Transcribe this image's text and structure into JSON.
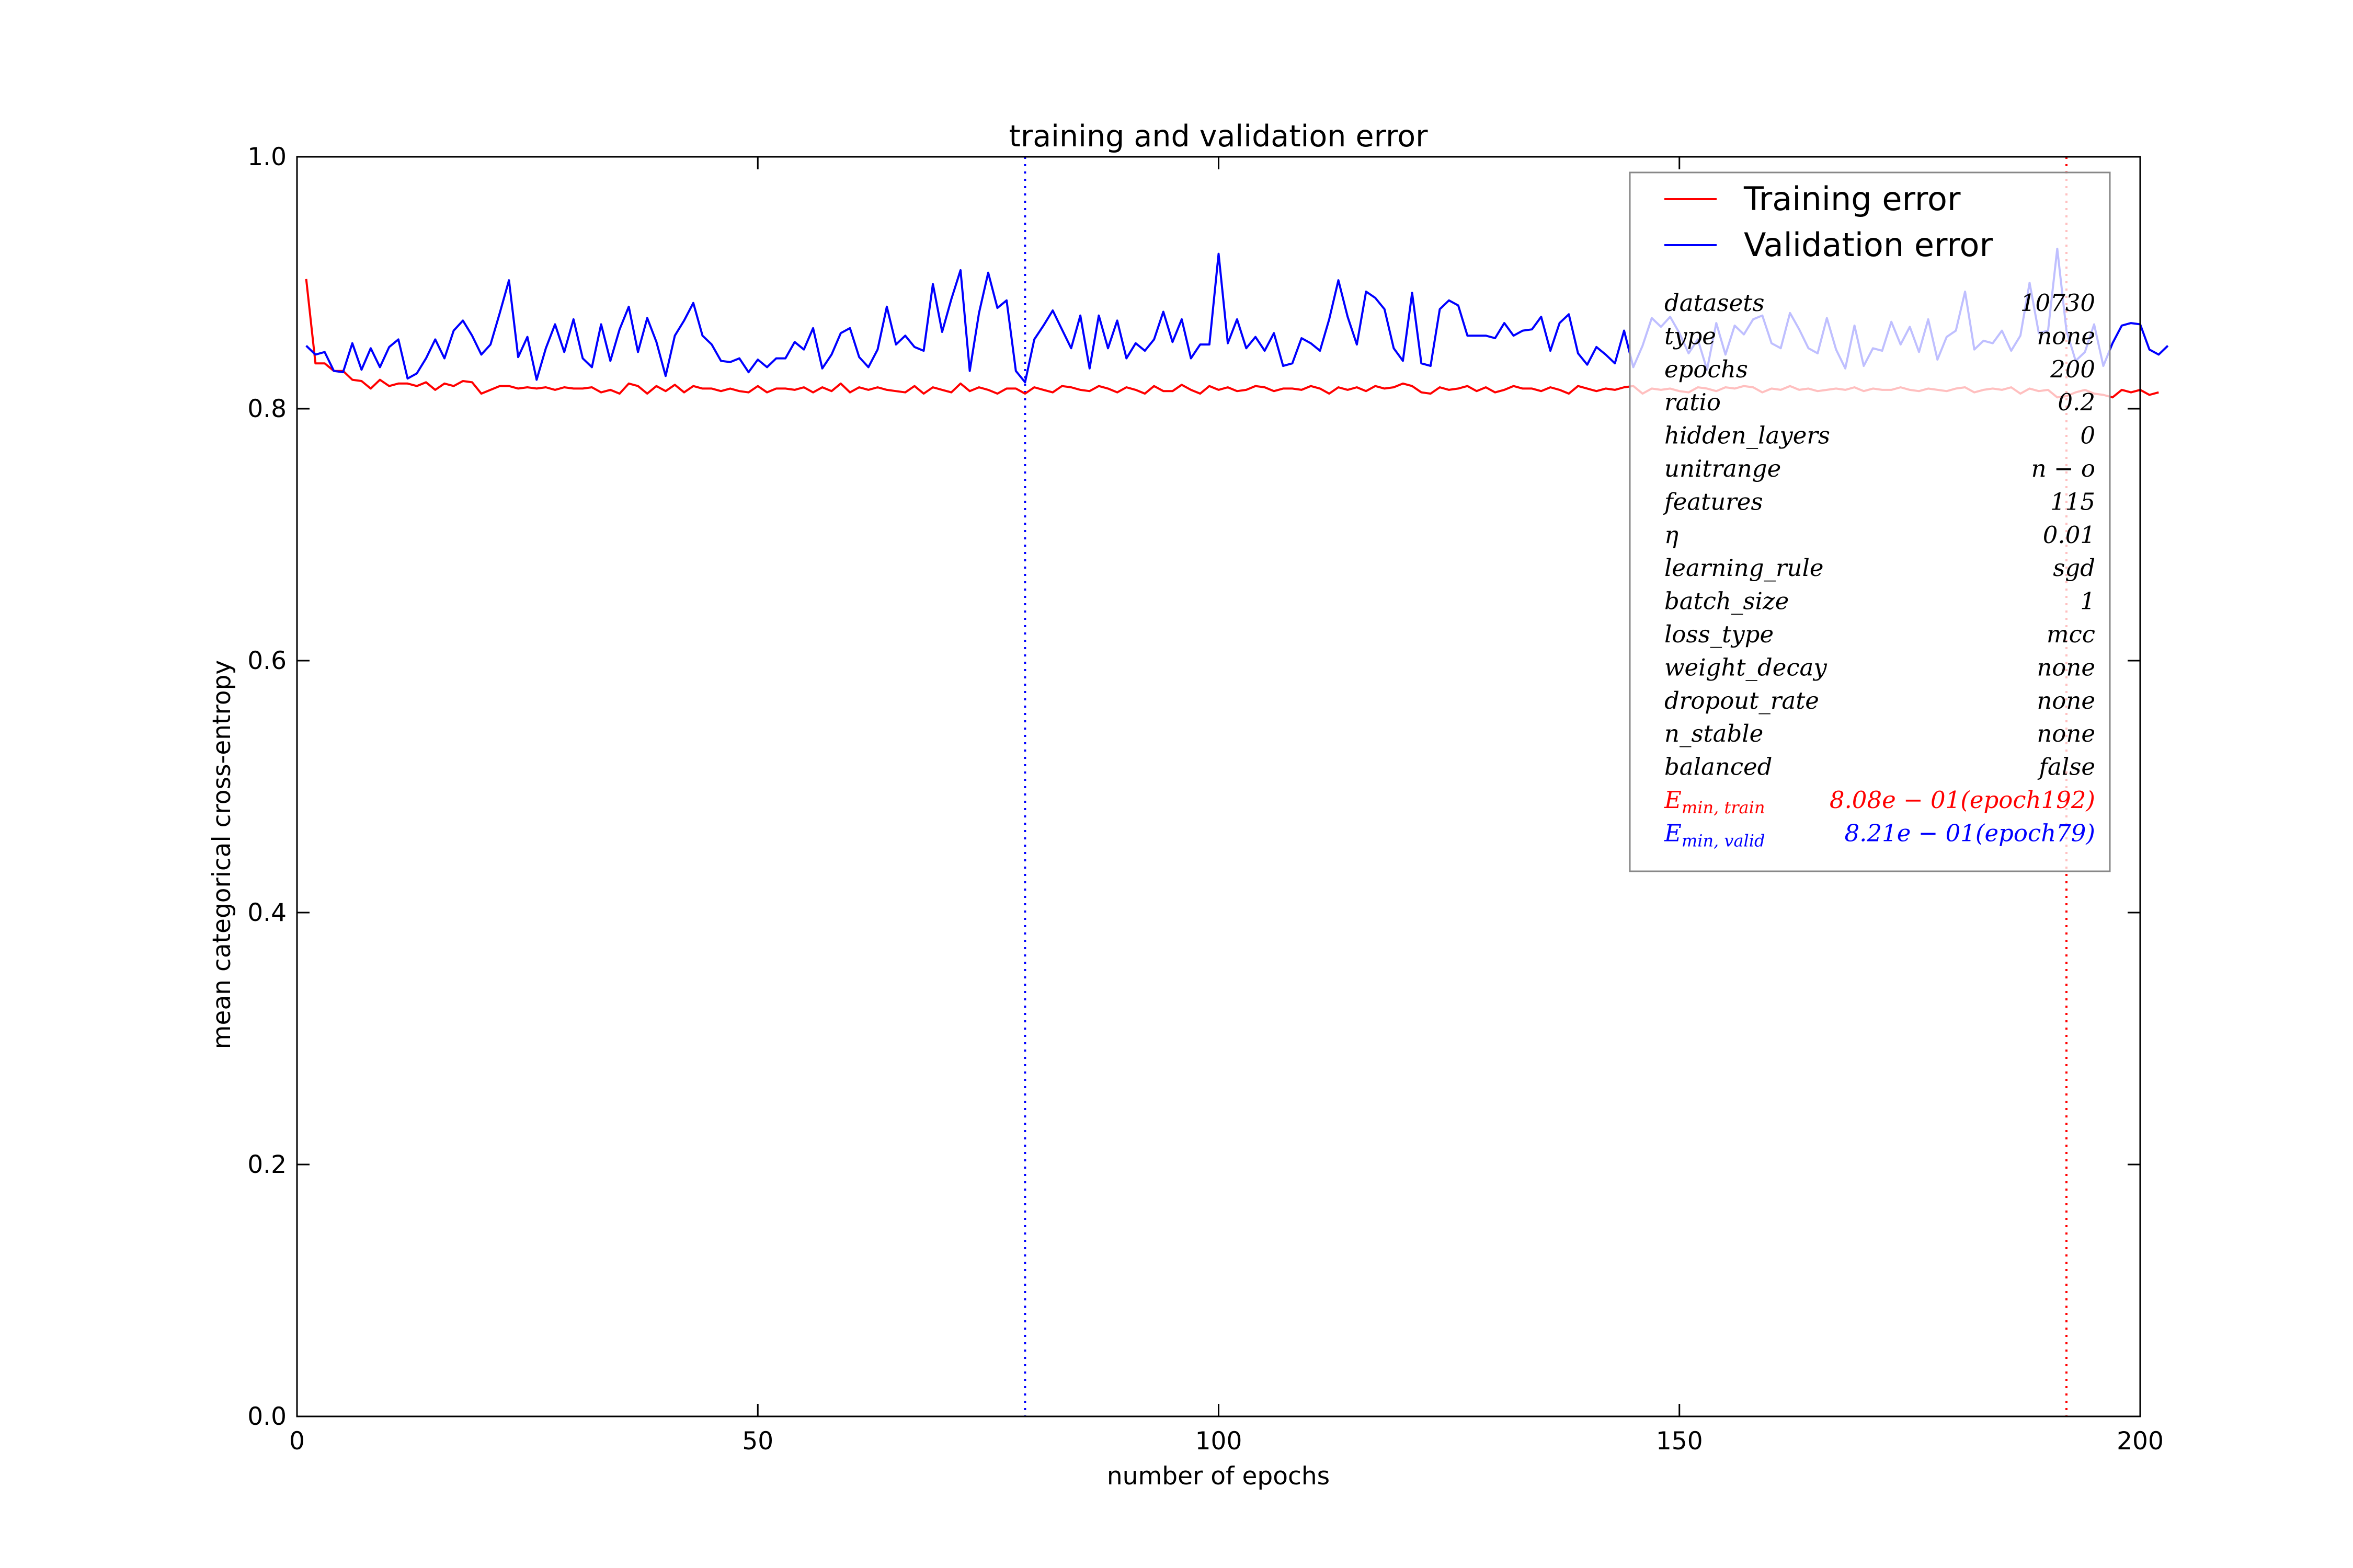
{
  "chart_data": {
    "type": "line",
    "title": "training and validation error",
    "xlabel": "number of epochs",
    "ylabel": "mean categorical cross-entropy",
    "xlim": [
      0,
      200
    ],
    "ylim": [
      0.0,
      1.0
    ],
    "x_ticks": [
      "0",
      "50",
      "100",
      "150",
      "200"
    ],
    "y_ticks": [
      "0.0",
      "0.2",
      "0.4",
      "0.6",
      "0.8",
      "1.0"
    ],
    "grid": false,
    "legend_position": "top-right",
    "series": [
      {
        "name": "Training error",
        "color": "#ff0000",
        "values": [
          0.903,
          0.836,
          0.836,
          0.83,
          0.83,
          0.823,
          0.822,
          0.816,
          0.823,
          0.818,
          0.82,
          0.82,
          0.818,
          0.821,
          0.815,
          0.82,
          0.818,
          0.822,
          0.821,
          0.812,
          0.815,
          0.818,
          0.818,
          0.816,
          0.817,
          0.816,
          0.817,
          0.815,
          0.817,
          0.816,
          0.816,
          0.817,
          0.813,
          0.815,
          0.812,
          0.82,
          0.818,
          0.812,
          0.818,
          0.814,
          0.819,
          0.813,
          0.818,
          0.816,
          0.816,
          0.814,
          0.816,
          0.814,
          0.813,
          0.818,
          0.813,
          0.816,
          0.816,
          0.815,
          0.817,
          0.813,
          0.817,
          0.814,
          0.82,
          0.813,
          0.817,
          0.815,
          0.817,
          0.815,
          0.814,
          0.813,
          0.818,
          0.812,
          0.817,
          0.815,
          0.813,
          0.82,
          0.814,
          0.817,
          0.815,
          0.812,
          0.816,
          0.816,
          0.812,
          0.817,
          0.815,
          0.813,
          0.818,
          0.817,
          0.815,
          0.814,
          0.818,
          0.816,
          0.813,
          0.817,
          0.815,
          0.812,
          0.818,
          0.814,
          0.814,
          0.819,
          0.815,
          0.812,
          0.818,
          0.815,
          0.817,
          0.814,
          0.815,
          0.818,
          0.817,
          0.814,
          0.816,
          0.816,
          0.815,
          0.818,
          0.816,
          0.812,
          0.817,
          0.815,
          0.817,
          0.814,
          0.818,
          0.816,
          0.817,
          0.82,
          0.818,
          0.813,
          0.812,
          0.817,
          0.815,
          0.816,
          0.818,
          0.814,
          0.817,
          0.813,
          0.815,
          0.818,
          0.816,
          0.816,
          0.814,
          0.817,
          0.815,
          0.812,
          0.818,
          0.816,
          0.814,
          0.816,
          0.815,
          0.817,
          0.818,
          0.812,
          0.816,
          0.815,
          0.816,
          0.814,
          0.813,
          0.817,
          0.816,
          0.814,
          0.817,
          0.816,
          0.818,
          0.817,
          0.813,
          0.816,
          0.815,
          0.818,
          0.815,
          0.816,
          0.814,
          0.815,
          0.816,
          0.815,
          0.817,
          0.814,
          0.816,
          0.815,
          0.815,
          0.817,
          0.815,
          0.814,
          0.816,
          0.815,
          0.814,
          0.816,
          0.817,
          0.813,
          0.815,
          0.816,
          0.815,
          0.817,
          0.812,
          0.816,
          0.814,
          0.815,
          0.809,
          0.81,
          0.813,
          0.815,
          0.812,
          0.811,
          0.809,
          0.815,
          0.813,
          0.815,
          0.811,
          0.813
        ]
      },
      {
        "name": "Validation error",
        "color": "#0000ff",
        "values": [
          0.85,
          0.843,
          0.845,
          0.83,
          0.829,
          0.852,
          0.831,
          0.848,
          0.833,
          0.849,
          0.855,
          0.824,
          0.828,
          0.84,
          0.855,
          0.84,
          0.862,
          0.87,
          0.858,
          0.843,
          0.851,
          0.876,
          0.902,
          0.841,
          0.857,
          0.823,
          0.848,
          0.867,
          0.845,
          0.871,
          0.84,
          0.833,
          0.867,
          0.838,
          0.863,
          0.881,
          0.845,
          0.872,
          0.853,
          0.826,
          0.858,
          0.87,
          0.884,
          0.858,
          0.851,
          0.838,
          0.837,
          0.84,
          0.829,
          0.839,
          0.833,
          0.84,
          0.84,
          0.853,
          0.847,
          0.864,
          0.832,
          0.843,
          0.86,
          0.864,
          0.841,
          0.833,
          0.847,
          0.881,
          0.851,
          0.858,
          0.849,
          0.846,
          0.899,
          0.861,
          0.887,
          0.91,
          0.83,
          0.876,
          0.908,
          0.88,
          0.886,
          0.83,
          0.821,
          0.855,
          0.866,
          0.878,
          0.863,
          0.848,
          0.874,
          0.832,
          0.874,
          0.848,
          0.87,
          0.84,
          0.852,
          0.846,
          0.855,
          0.877,
          0.853,
          0.871,
          0.84,
          0.851,
          0.851,
          0.923,
          0.852,
          0.871,
          0.848,
          0.857,
          0.846,
          0.86,
          0.834,
          0.836,
          0.856,
          0.852,
          0.846,
          0.871,
          0.902,
          0.873,
          0.851,
          0.893,
          0.888,
          0.879,
          0.848,
          0.838,
          0.892,
          0.836,
          0.834,
          0.879,
          0.886,
          0.882,
          0.858,
          0.858,
          0.858,
          0.856,
          0.868,
          0.858,
          0.862,
          0.863,
          0.873,
          0.846,
          0.868,
          0.875,
          0.844,
          0.835,
          0.849,
          0.843,
          0.836,
          0.862,
          0.833,
          0.85,
          0.872,
          0.865,
          0.873,
          0.86,
          0.844,
          0.855,
          0.831,
          0.868,
          0.843,
          0.866,
          0.859,
          0.871,
          0.874,
          0.852,
          0.848,
          0.876,
          0.863,
          0.848,
          0.844,
          0.872,
          0.847,
          0.832,
          0.866,
          0.834,
          0.848,
          0.846,
          0.869,
          0.851,
          0.865,
          0.845,
          0.871,
          0.839,
          0.857,
          0.862,
          0.893,
          0.847,
          0.854,
          0.852,
          0.862,
          0.846,
          0.858,
          0.9,
          0.86,
          0.862,
          0.927,
          0.862,
          0.838,
          0.845,
          0.867,
          0.834,
          0.852,
          0.866,
          0.868,
          0.867,
          0.847,
          0.843,
          0.85
        ]
      }
    ],
    "vlines": [
      {
        "x": 79,
        "color": "#0000ff",
        "style": "dotted"
      },
      {
        "x": 192,
        "color": "#ff0000",
        "style": "dotted"
      }
    ]
  },
  "info_table": [
    {
      "key": "datasets",
      "value": "10730"
    },
    {
      "key": "type",
      "value": "none"
    },
    {
      "key": "epochs",
      "value": "200"
    },
    {
      "key": "ratio",
      "value": "0.2"
    },
    {
      "key": "hidden_layers",
      "value": "0"
    },
    {
      "key": "unitrange",
      "value": "n − o"
    },
    {
      "key": "features",
      "value": "115"
    },
    {
      "key": "η",
      "value": "0.01"
    },
    {
      "key": "learning_rule",
      "value": "sgd"
    },
    {
      "key": "batch_size",
      "value": "1"
    },
    {
      "key": "loss_type",
      "value": "mcc"
    },
    {
      "key": "weight_decay",
      "value": "none"
    },
    {
      "key": "dropout_rate",
      "value": "none"
    },
    {
      "key": "n_stable",
      "value": "none"
    },
    {
      "key": "balanced",
      "value": "false"
    }
  ],
  "emin": [
    {
      "label": "E",
      "sub": "min, train",
      "value": "8.08e − 01(epoch192)",
      "color": "#ff0000"
    },
    {
      "label": "E",
      "sub": "min, valid",
      "value": "8.21e − 01(epoch79)",
      "color": "#0000ff"
    }
  ]
}
